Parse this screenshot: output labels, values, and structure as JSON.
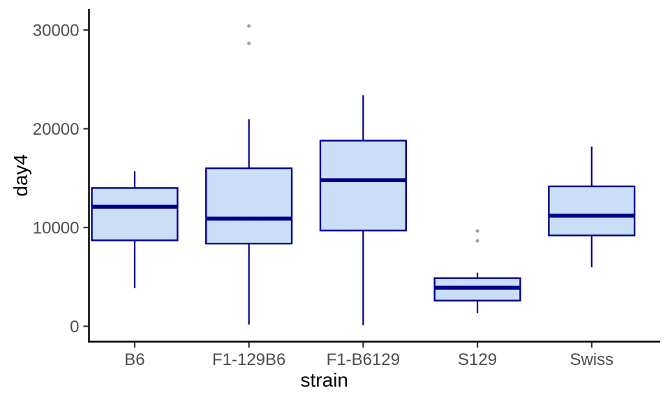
{
  "figure": {
    "background": "#FFFFFF"
  },
  "chart_data": {
    "type": "boxplot",
    "title": "",
    "xlabel": "strain",
    "ylabel": "day4",
    "categories": [
      "B6",
      "F1-129B6",
      "F1-B6129",
      "S129",
      "Swiss"
    ],
    "y_ticks": [
      0,
      10000,
      20000,
      30000
    ],
    "y_tick_labels": [
      "0",
      "10000",
      "20000",
      "30000"
    ],
    "ylim": [
      -1555,
      32120
    ],
    "x_expand": [
      0.4,
      0.6
    ],
    "box_width_units": 0.75,
    "grid": "off",
    "legend": "none",
    "series": [
      {
        "category": "B6",
        "whisker_low": 3850,
        "q1": 8700,
        "median": 12100,
        "q3": 14000,
        "whisker_high": 15700,
        "outliers": []
      },
      {
        "category": "F1-129B6",
        "whisker_low": 180,
        "q1": 8370,
        "median": 10900,
        "q3": 16000,
        "whisker_high": 20950,
        "outliers": [
          30400,
          28650
        ]
      },
      {
        "category": "F1-B6129",
        "whisker_low": 100,
        "q1": 9700,
        "median": 14800,
        "q3": 18800,
        "whisker_high": 23400,
        "outliers": []
      },
      {
        "category": "S129",
        "whisker_low": 1340,
        "q1": 2600,
        "median": 3900,
        "q3": 4870,
        "whisker_high": 5430,
        "outliers": [
          9650,
          8650
        ]
      },
      {
        "category": "Swiss",
        "whisker_low": 5970,
        "q1": 9200,
        "median": 11200,
        "q3": 14170,
        "whisker_high": 18200,
        "outliers": []
      }
    ],
    "colors": {
      "box_fill": "#CBDEF8",
      "box_border": "#00008B",
      "median_line": "#00008B",
      "whisker": "#00008B",
      "outlier": "#A0A0A0",
      "axis_line": "#000000",
      "tick_mark": "#333333",
      "tick_label": "#4D4D4D",
      "axis_title": "#000000",
      "background": "#FFFFFF"
    }
  }
}
